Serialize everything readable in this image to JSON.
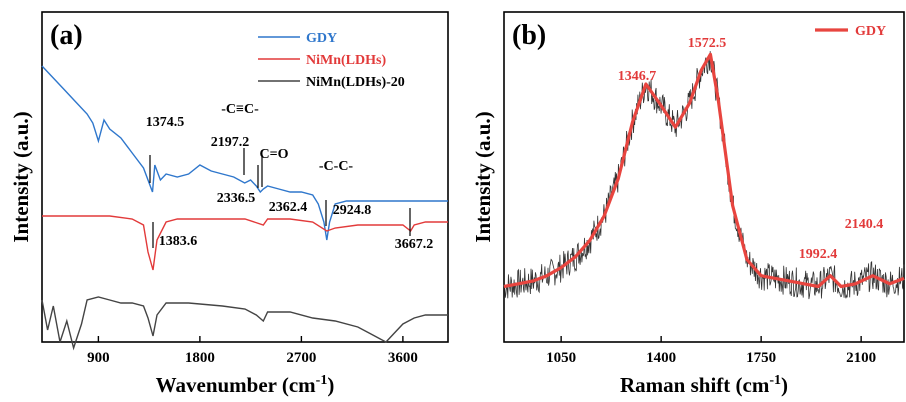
{
  "chart_data": [
    {
      "type": "line",
      "panel_label": "(a)",
      "xlabel": "Wavenumber (cm",
      "xlabel_sup": "-1",
      "xlabel_close": ")",
      "ylabel": "Intensity (a.u.)",
      "xlim": [
        400,
        4000
      ],
      "x_ticks": [
        900,
        1800,
        2700,
        3600
      ],
      "series": [
        {
          "name": "GDY",
          "color": "#2f77cc",
          "x": [
            400,
            500,
            600,
            700,
            800,
            850,
            900,
            950,
            1000,
            1100,
            1200,
            1300,
            1380,
            1400,
            1450,
            1500,
            1600,
            1700,
            1800,
            1900,
            2000,
            2100,
            2197,
            2250,
            2300,
            2336,
            2362,
            2400,
            2500,
            2600,
            2700,
            2800,
            2850,
            2900,
            2925,
            2950,
            3000,
            3100,
            3200,
            3400,
            3600,
            3800,
            4000
          ],
          "y": [
            0.82,
            0.78,
            0.74,
            0.7,
            0.66,
            0.63,
            0.57,
            0.64,
            0.61,
            0.58,
            0.53,
            0.48,
            0.4,
            0.49,
            0.44,
            0.46,
            0.45,
            0.46,
            0.49,
            0.47,
            0.46,
            0.45,
            0.43,
            0.44,
            0.42,
            0.4,
            0.41,
            0.42,
            0.41,
            0.4,
            0.4,
            0.39,
            0.36,
            0.3,
            0.24,
            0.3,
            0.36,
            0.37,
            0.37,
            0.37,
            0.37,
            0.37,
            0.37
          ]
        },
        {
          "name": "NiMn(LDHs)",
          "color": "#e23a3a",
          "x": [
            400,
            600,
            800,
            1000,
            1200,
            1300,
            1340,
            1384,
            1420,
            1500,
            1600,
            1800,
            2000,
            2200,
            2362,
            2400,
            2600,
            2800,
            2925,
            3000,
            3200,
            3400,
            3600,
            3668,
            3700,
            3800,
            4000
          ],
          "y": [
            0.32,
            0.32,
            0.32,
            0.32,
            0.31,
            0.29,
            0.2,
            0.14,
            0.24,
            0.3,
            0.31,
            0.31,
            0.31,
            0.31,
            0.29,
            0.31,
            0.31,
            0.3,
            0.27,
            0.28,
            0.29,
            0.29,
            0.29,
            0.27,
            0.29,
            0.3,
            0.3
          ]
        },
        {
          "name": "NiMn(LDHs)-20",
          "color": "#444444",
          "x": [
            400,
            450,
            500,
            560,
            620,
            680,
            750,
            800,
            900,
            1000,
            1100,
            1200,
            1300,
            1340,
            1384,
            1420,
            1500,
            1700,
            2000,
            2200,
            2300,
            2362,
            2400,
            2600,
            2800,
            3000,
            3200,
            3300,
            3400,
            3450,
            3500,
            3600,
            3700,
            3800,
            4000
          ],
          "y": [
            0.04,
            -0.06,
            0.02,
            -0.1,
            -0.03,
            -0.12,
            -0.04,
            0.04,
            0.05,
            0.04,
            0.03,
            0.03,
            0.02,
            -0.02,
            -0.08,
            -0.01,
            0.03,
            0.03,
            0.02,
            0.01,
            -0.01,
            -0.03,
            0.0,
            0.0,
            -0.02,
            -0.03,
            -0.05,
            -0.07,
            -0.09,
            -0.1,
            -0.08,
            -0.04,
            -0.02,
            -0.01,
            -0.01
          ]
        }
      ],
      "annotations": [
        {
          "text": "1374.5",
          "x": 1374.5
        },
        {
          "text": "-C≡C-",
          "x": 2197.2
        },
        {
          "text": "2197.2",
          "x": 2197.2
        },
        {
          "text": "C=O",
          "x": 2362.4
        },
        {
          "text": "2336.5",
          "x": 2336.5
        },
        {
          "text": "2362.4",
          "x": 2362.4
        },
        {
          "text": "-C-C-",
          "x": 2924.8
        },
        {
          "text": "2924.8",
          "x": 2924.8
        },
        {
          "text": "1383.6",
          "x": 1383.6
        },
        {
          "text": "3667.2",
          "x": 3667.2
        }
      ],
      "legend_position": "top-right",
      "grid": false
    },
    {
      "type": "line",
      "panel_label": "(b)",
      "xlabel": "Raman shift (cm",
      "xlabel_sup": "-1",
      "xlabel_close": ")",
      "ylabel": "Intensity (a.u.)",
      "xlim": [
        850,
        2250
      ],
      "x_ticks": [
        1050,
        1400,
        1750,
        2100
      ],
      "series": [
        {
          "name": "GDY",
          "color": "#e8453f",
          "x": [
            850,
            900,
            950,
            1000,
            1050,
            1100,
            1150,
            1200,
            1250,
            1300,
            1346.7,
            1400,
            1450,
            1500,
            1540,
            1572.5,
            1600,
            1650,
            1700,
            1750,
            1800,
            1850,
            1900,
            1950,
            1992.4,
            2030,
            2080,
            2140.4,
            2200,
            2250
          ],
          "y": [
            0.05,
            0.06,
            0.07,
            0.09,
            0.12,
            0.16,
            0.22,
            0.31,
            0.45,
            0.66,
            0.8,
            0.72,
            0.64,
            0.73,
            0.85,
            0.91,
            0.74,
            0.35,
            0.15,
            0.09,
            0.08,
            0.07,
            0.06,
            0.05,
            0.09,
            0.05,
            0.06,
            0.09,
            0.06,
            0.08
          ]
        }
      ],
      "raw_spectrum_color": "#333333",
      "annotations": [
        {
          "text": "1346.7",
          "x": 1346.7
        },
        {
          "text": "1572.5",
          "x": 1572.5
        },
        {
          "text": "1992.4",
          "x": 1992.4
        },
        {
          "text": "2140.4",
          "x": 2140.4
        }
      ],
      "legend_position": "top-right",
      "grid": false
    }
  ]
}
